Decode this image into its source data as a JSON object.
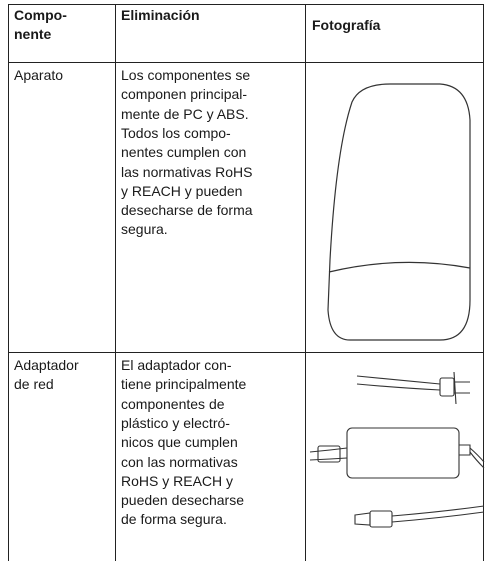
{
  "table": {
    "header": [
      [
        "Compo-",
        "nente"
      ],
      [
        "Eliminación"
      ],
      [
        "Fotografía"
      ]
    ],
    "rows": [
      [
        [
          "Aparato"
        ],
        [
          "Los componentes se",
          "componen principal-",
          "mente de PC y ABS.",
          "Todos los compo-",
          "nentes cumplen con",
          "las normativas RoHS",
          "y REACH y pueden",
          "desecharse de forma",
          "segura."
        ]
      ],
      [
        [
          "Adaptador",
          "de red"
        ],
        [
          "El adaptador con-",
          "tiene principalmente",
          "componentes de",
          "plástico y electró-",
          "nicos que cumplen",
          "con las normativas",
          "RoHS y REACH y",
          "pueden desecharse",
          "de forma segura."
        ]
      ]
    ]
  }
}
